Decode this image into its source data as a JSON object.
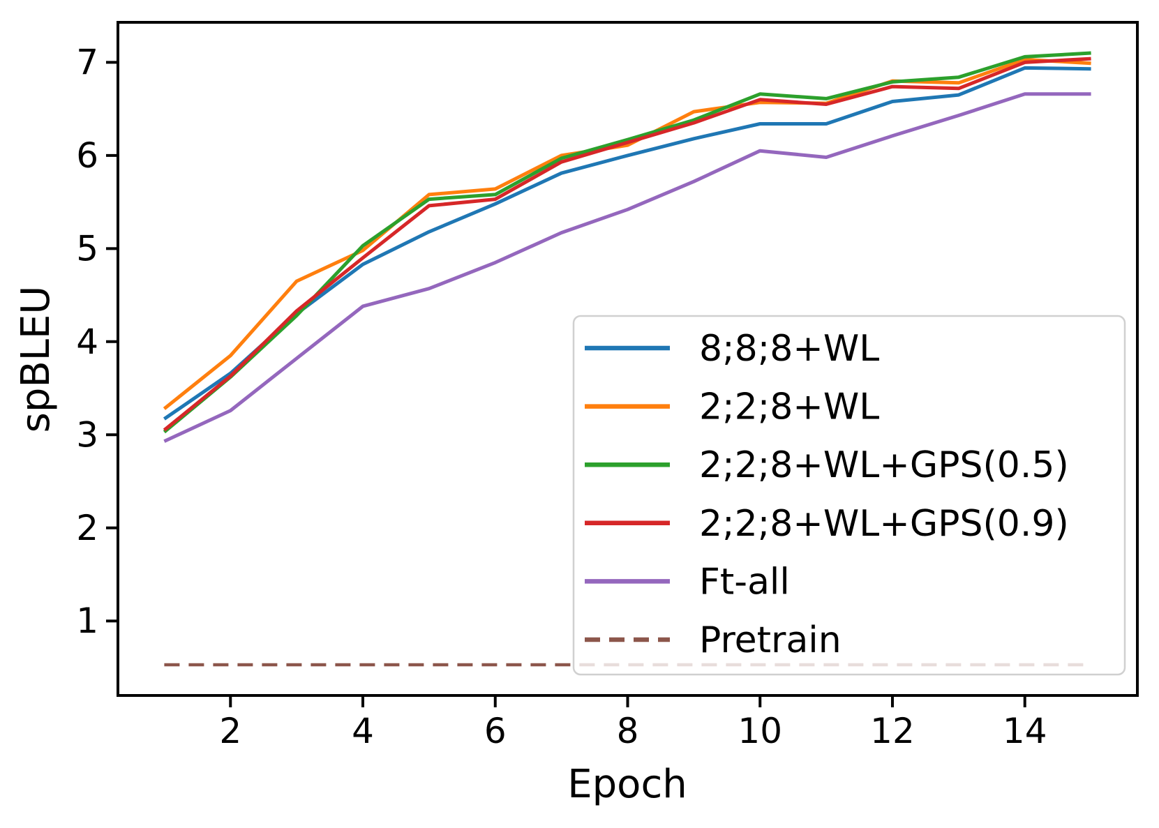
{
  "figure": {
    "background": "#ffffff",
    "text_color": "#000000",
    "spine_color": "#000000",
    "legend_border_color": "#d0d0d0",
    "legend_background": "rgba(255,255,255,0.8)"
  },
  "chart_data": {
    "type": "line",
    "title": "",
    "xlabel": "Epoch",
    "ylabel": "spBLEU",
    "x": [
      1,
      2,
      3,
      4,
      5,
      6,
      7,
      8,
      9,
      10,
      11,
      12,
      13,
      14,
      15
    ],
    "xticks": [
      2,
      4,
      6,
      8,
      10,
      12,
      14
    ],
    "yticks": [
      1,
      2,
      3,
      4,
      5,
      6,
      7
    ],
    "xlim": [
      0.3,
      15.7
    ],
    "ylim": [
      0.2,
      7.43
    ],
    "grid": false,
    "legend_position": "lower right",
    "series": [
      {
        "name": "8;8;8+WL",
        "color": "#1f77b4",
        "style": "solid",
        "values": [
          3.17,
          3.66,
          4.3,
          4.83,
          5.18,
          5.48,
          5.81,
          6.0,
          6.18,
          6.34,
          6.34,
          6.58,
          6.65,
          6.94,
          6.93
        ]
      },
      {
        "name": "2;2;8+WL",
        "color": "#ff7f0e",
        "style": "solid",
        "values": [
          3.28,
          3.85,
          4.65,
          4.98,
          5.58,
          5.64,
          6.0,
          6.11,
          6.47,
          6.57,
          6.56,
          6.8,
          6.78,
          7.03,
          6.99
        ]
      },
      {
        "name": "2;2;8+WL+GPS(0.5)",
        "color": "#2ca02c",
        "style": "solid",
        "values": [
          3.03,
          3.62,
          4.28,
          5.03,
          5.53,
          5.58,
          5.97,
          6.17,
          6.38,
          6.66,
          6.61,
          6.79,
          6.84,
          7.06,
          7.1
        ]
      },
      {
        "name": "2;2;8+WL+GPS(0.9)",
        "color": "#d62728",
        "style": "solid",
        "values": [
          3.05,
          3.63,
          4.33,
          4.9,
          5.46,
          5.53,
          5.93,
          6.14,
          6.35,
          6.6,
          6.55,
          6.74,
          6.72,
          7.0,
          7.04
        ]
      },
      {
        "name": "Ft-all",
        "color": "#9467bd",
        "style": "solid",
        "values": [
          2.93,
          3.26,
          3.82,
          4.38,
          4.57,
          4.85,
          5.17,
          5.42,
          5.72,
          6.05,
          5.98,
          6.21,
          6.43,
          6.66,
          6.66
        ]
      },
      {
        "name": "Pretrain",
        "color": "#8c564b",
        "style": "dashed",
        "values": [
          0.53,
          0.53,
          0.53,
          0.53,
          0.53,
          0.53,
          0.53,
          0.53,
          0.53,
          0.53,
          0.53,
          0.53,
          0.53,
          0.53,
          0.53
        ]
      }
    ]
  }
}
